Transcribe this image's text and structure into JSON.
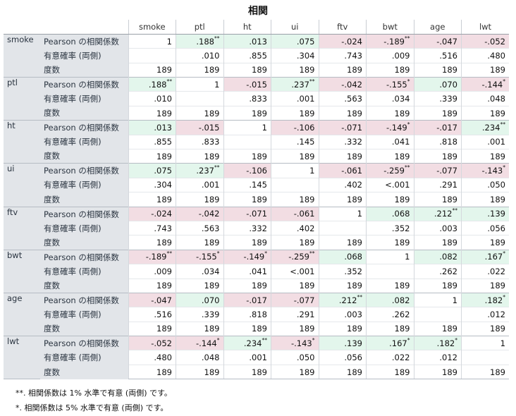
{
  "title": "相関",
  "columns": [
    "smoke",
    "ptl",
    "ht",
    "ui",
    "ftv",
    "bwt",
    "age",
    "lwt"
  ],
  "stat_labels": [
    "Pearson の相関係数",
    "有意確率 (両側)",
    "度数"
  ],
  "rows": [
    {
      "var": "smoke",
      "r": [
        {
          "v": "1"
        },
        {
          "v": ".188",
          "s": "**",
          "c": "pos"
        },
        {
          "v": ".013",
          "c": "pos"
        },
        {
          "v": ".075",
          "c": "pos"
        },
        {
          "v": "-.024",
          "c": "neg"
        },
        {
          "v": "-.189",
          "s": "**",
          "c": "neg"
        },
        {
          "v": "-.047",
          "c": "neg"
        },
        {
          "v": "-.052",
          "c": "neg"
        }
      ],
      "p": [
        "",
        ".010",
        ".855",
        ".304",
        ".743",
        ".009",
        ".516",
        ".480"
      ],
      "n": [
        "189",
        "189",
        "189",
        "189",
        "189",
        "189",
        "189",
        "189"
      ]
    },
    {
      "var": "ptl",
      "r": [
        {
          "v": ".188",
          "s": "**",
          "c": "pos"
        },
        {
          "v": "1"
        },
        {
          "v": "-.015",
          "c": "neg"
        },
        {
          "v": ".237",
          "s": "**",
          "c": "pos"
        },
        {
          "v": "-.042",
          "c": "neg"
        },
        {
          "v": "-.155",
          "s": "*",
          "c": "neg"
        },
        {
          "v": ".070",
          "c": "pos"
        },
        {
          "v": "-.144",
          "s": "*",
          "c": "neg"
        }
      ],
      "p": [
        ".010",
        "",
        ".833",
        ".001",
        ".563",
        ".034",
        ".339",
        ".048"
      ],
      "n": [
        "189",
        "189",
        "189",
        "189",
        "189",
        "189",
        "189",
        "189"
      ]
    },
    {
      "var": "ht",
      "r": [
        {
          "v": ".013",
          "c": "pos"
        },
        {
          "v": "-.015",
          "c": "neg"
        },
        {
          "v": "1"
        },
        {
          "v": "-.106",
          "c": "neg"
        },
        {
          "v": "-.071",
          "c": "neg"
        },
        {
          "v": "-.149",
          "s": "*",
          "c": "neg"
        },
        {
          "v": "-.017",
          "c": "neg"
        },
        {
          "v": ".234",
          "s": "**",
          "c": "pos"
        }
      ],
      "p": [
        ".855",
        ".833",
        "",
        ".145",
        ".332",
        ".041",
        ".818",
        ".001"
      ],
      "n": [
        "189",
        "189",
        "189",
        "189",
        "189",
        "189",
        "189",
        "189"
      ]
    },
    {
      "var": "ui",
      "r": [
        {
          "v": ".075",
          "c": "pos"
        },
        {
          "v": ".237",
          "s": "**",
          "c": "pos"
        },
        {
          "v": "-.106",
          "c": "neg"
        },
        {
          "v": "1"
        },
        {
          "v": "-.061",
          "c": "neg"
        },
        {
          "v": "-.259",
          "s": "**",
          "c": "neg"
        },
        {
          "v": "-.077",
          "c": "neg"
        },
        {
          "v": "-.143",
          "s": "*",
          "c": "neg"
        }
      ],
      "p": [
        ".304",
        ".001",
        ".145",
        "",
        ".402",
        "<.001",
        ".291",
        ".050"
      ],
      "n": [
        "189",
        "189",
        "189",
        "189",
        "189",
        "189",
        "189",
        "189"
      ]
    },
    {
      "var": "ftv",
      "r": [
        {
          "v": "-.024",
          "c": "neg"
        },
        {
          "v": "-.042",
          "c": "neg"
        },
        {
          "v": "-.071",
          "c": "neg"
        },
        {
          "v": "-.061",
          "c": "neg"
        },
        {
          "v": "1"
        },
        {
          "v": ".068",
          "c": "pos"
        },
        {
          "v": ".212",
          "s": "**",
          "c": "pos"
        },
        {
          "v": ".139",
          "c": "pos"
        }
      ],
      "p": [
        ".743",
        ".563",
        ".332",
        ".402",
        "",
        ".352",
        ".003",
        ".056"
      ],
      "n": [
        "189",
        "189",
        "189",
        "189",
        "189",
        "189",
        "189",
        "189"
      ]
    },
    {
      "var": "bwt",
      "r": [
        {
          "v": "-.189",
          "s": "**",
          "c": "neg"
        },
        {
          "v": "-.155",
          "s": "*",
          "c": "neg"
        },
        {
          "v": "-.149",
          "s": "*",
          "c": "neg"
        },
        {
          "v": "-.259",
          "s": "**",
          "c": "neg"
        },
        {
          "v": ".068",
          "c": "pos"
        },
        {
          "v": "1"
        },
        {
          "v": ".082",
          "c": "pos"
        },
        {
          "v": ".167",
          "s": "*",
          "c": "pos"
        }
      ],
      "p": [
        ".009",
        ".034",
        ".041",
        "<.001",
        ".352",
        "",
        ".262",
        ".022"
      ],
      "n": [
        "189",
        "189",
        "189",
        "189",
        "189",
        "189",
        "189",
        "189"
      ]
    },
    {
      "var": "age",
      "r": [
        {
          "v": "-.047",
          "c": "neg"
        },
        {
          "v": ".070",
          "c": "pos"
        },
        {
          "v": "-.017",
          "c": "neg"
        },
        {
          "v": "-.077",
          "c": "neg"
        },
        {
          "v": ".212",
          "s": "**",
          "c": "pos"
        },
        {
          "v": ".082",
          "c": "pos"
        },
        {
          "v": "1"
        },
        {
          "v": ".182",
          "s": "*",
          "c": "pos"
        }
      ],
      "p": [
        ".516",
        ".339",
        ".818",
        ".291",
        ".003",
        ".262",
        "",
        ".012"
      ],
      "n": [
        "189",
        "189",
        "189",
        "189",
        "189",
        "189",
        "189",
        "189"
      ]
    },
    {
      "var": "lwt",
      "r": [
        {
          "v": "-.052",
          "c": "neg"
        },
        {
          "v": "-.144",
          "s": "*",
          "c": "neg"
        },
        {
          "v": ".234",
          "s": "**",
          "c": "pos"
        },
        {
          "v": "-.143",
          "s": "*",
          "c": "neg"
        },
        {
          "v": ".139",
          "c": "pos"
        },
        {
          "v": ".167",
          "s": "*",
          "c": "pos"
        },
        {
          "v": ".182",
          "s": "*",
          "c": "pos"
        },
        {
          "v": "1"
        }
      ],
      "p": [
        ".480",
        ".048",
        ".001",
        ".050",
        ".056",
        ".022",
        ".012",
        ""
      ],
      "n": [
        "189",
        "189",
        "189",
        "189",
        "189",
        "189",
        "189",
        "189"
      ]
    }
  ],
  "footnotes": [
    "**. 相関係数は 1% 水準で有意 (両側) です。",
    "*. 相関係数は 5% 水準で有意 (両側) です。"
  ],
  "colors": {
    "positive": "#e3f6ec",
    "negative": "#f2dde3",
    "label_bg": "#e2e5e9"
  }
}
